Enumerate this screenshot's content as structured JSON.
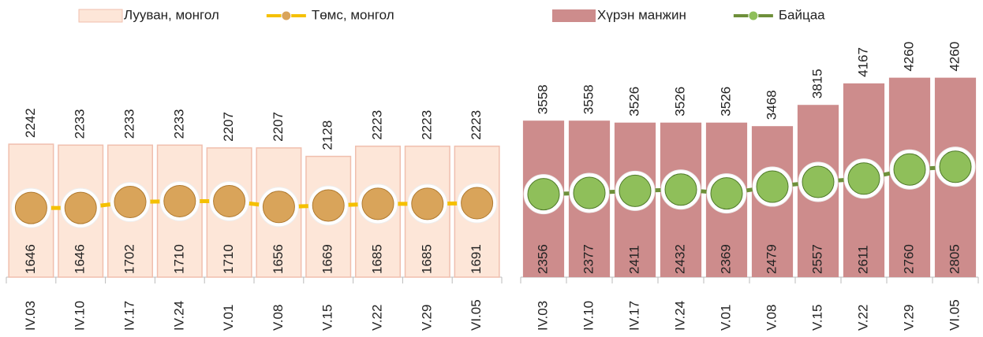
{
  "chart_data": [
    {
      "type": "combo",
      "categories": [
        "IV.03",
        "IV.10",
        "IV.17",
        "IV.24",
        "V.01",
        "V.08",
        "V.15",
        "V.22",
        "V.29",
        "VI.05"
      ],
      "ylim": [
        1000,
        3000
      ],
      "series": [
        {
          "name": "Лууван, монгол",
          "kind": "bar",
          "color": "#fde6d8",
          "values": [
            2242,
            2233,
            2233,
            2233,
            2207,
            2207,
            2128,
            2223,
            2223,
            2223
          ]
        },
        {
          "name": "Төмс, монгол",
          "kind": "line",
          "color": "#f5c000",
          "values": [
            1646,
            1646,
            1702,
            1710,
            1710,
            1656,
            1669,
            1685,
            1685,
            1691
          ]
        }
      ]
    },
    {
      "type": "combo",
      "categories": [
        "IV.03",
        "IV.10",
        "IV.17",
        "IV.24",
        "V.01",
        "V.08",
        "V.15",
        "V.22",
        "V.29",
        "VI.05"
      ],
      "ylim": [
        1000,
        4500
      ],
      "series": [
        {
          "name": "Хүрэн манжин",
          "kind": "bar",
          "color": "#cd8c8c",
          "values": [
            3558,
            3558,
            3526,
            3526,
            3526,
            3468,
            3815,
            4167,
            4260,
            4260
          ]
        },
        {
          "name": "Байцаа",
          "kind": "line",
          "color": "#6e8f3a",
          "values": [
            2356,
            2377,
            2411,
            2432,
            2369,
            2479,
            2557,
            2611,
            2760,
            2805
          ]
        }
      ]
    }
  ]
}
